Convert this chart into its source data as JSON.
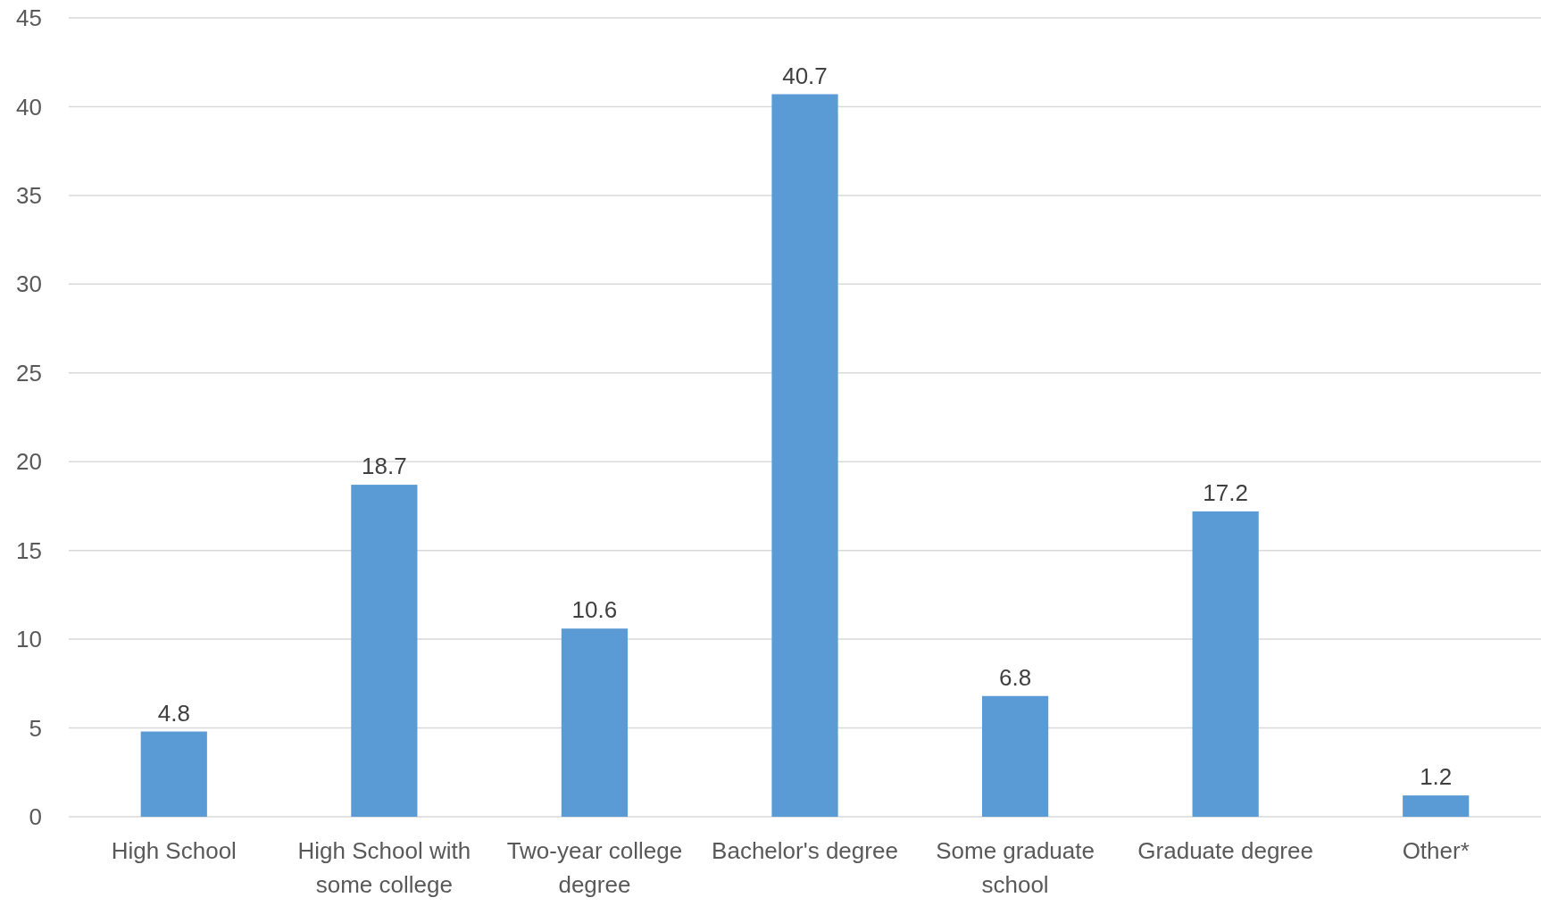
{
  "chart_data": {
    "type": "bar",
    "categories": [
      "High School",
      "High School with some college",
      "Two-year college degree",
      "Bachelor's degree",
      "Some graduate school",
      "Graduate degree",
      "Other*"
    ],
    "values": [
      4.8,
      18.7,
      10.6,
      40.7,
      6.8,
      17.2,
      1.2
    ],
    "color": "#5b9bd5",
    "ylim": [
      0,
      45
    ],
    "yticks": [
      0,
      5,
      10,
      15,
      20,
      25,
      30,
      35,
      40,
      45
    ],
    "grid": "y",
    "data_labels": true
  }
}
